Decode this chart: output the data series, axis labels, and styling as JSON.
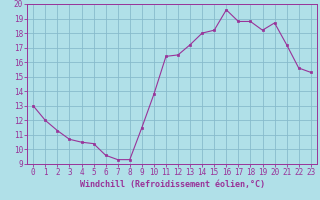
{
  "x": [
    0,
    1,
    2,
    3,
    4,
    5,
    6,
    7,
    8,
    9,
    10,
    11,
    12,
    13,
    14,
    15,
    16,
    17,
    18,
    19,
    20,
    21,
    22,
    23
  ],
  "y": [
    13.0,
    12.0,
    11.3,
    10.7,
    10.5,
    10.4,
    9.6,
    9.3,
    9.3,
    11.5,
    13.8,
    16.4,
    16.5,
    17.2,
    18.0,
    18.2,
    19.6,
    18.8,
    18.8,
    18.2,
    18.7,
    17.2,
    15.6,
    15.3
  ],
  "line_color": "#993399",
  "marker_color": "#993399",
  "bg_color": "#b0e0e8",
  "grid_color": "#88bbcc",
  "xlabel": "Windchill (Refroidissement éolien,°C)",
  "ylim": [
    9,
    20
  ],
  "xlim": [
    -0.5,
    23.5
  ],
  "yticks": [
    9,
    10,
    11,
    12,
    13,
    14,
    15,
    16,
    17,
    18,
    19,
    20
  ],
  "xticks": [
    0,
    1,
    2,
    3,
    4,
    5,
    6,
    7,
    8,
    9,
    10,
    11,
    12,
    13,
    14,
    15,
    16,
    17,
    18,
    19,
    20,
    21,
    22,
    23
  ],
  "axis_color": "#993399",
  "font_color": "#993399",
  "tick_fontsize": 5.5,
  "xlabel_fontsize": 6.0
}
